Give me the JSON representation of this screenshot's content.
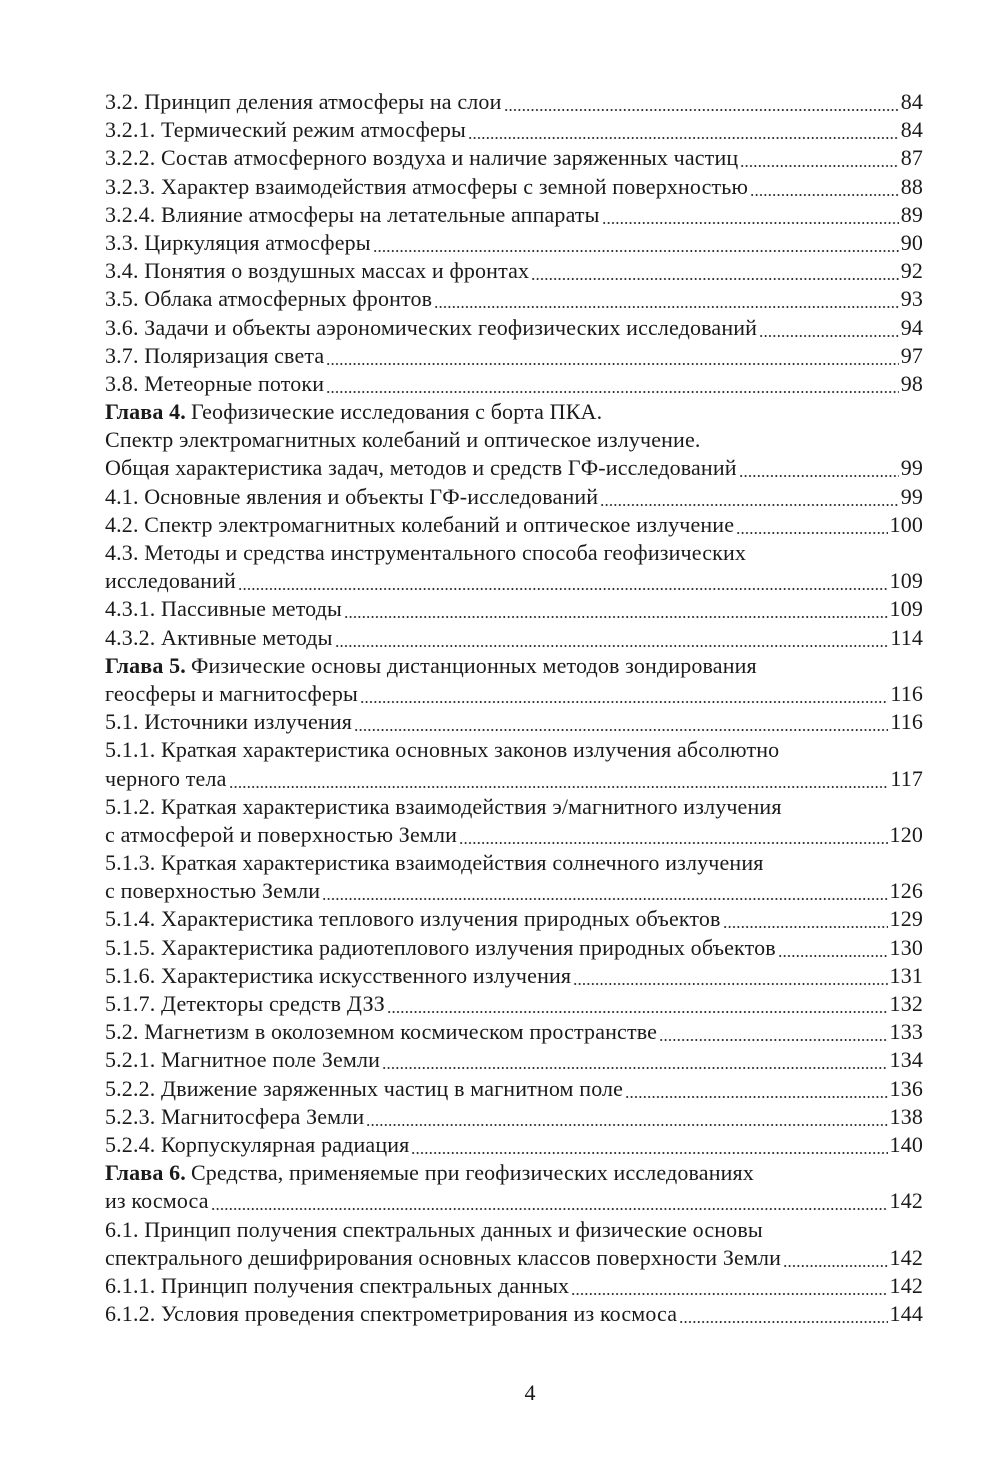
{
  "entries": [
    {
      "lines": [
        "3.2. Принцип деления атмосферы на слои"
      ],
      "page": "84"
    },
    {
      "lines": [
        "3.2.1. Термический режим атмосферы"
      ],
      "page": "84"
    },
    {
      "lines": [
        "3.2.2. Состав атмосферного воздуха и наличие заряженных частиц"
      ],
      "page": "87"
    },
    {
      "lines": [
        "3.2.3. Характер взаимодействия атмосферы с земной поверхностью"
      ],
      "page": "88"
    },
    {
      "lines": [
        "3.2.4. Влияние атмосферы на летательные аппараты"
      ],
      "page": "89"
    },
    {
      "lines": [
        "3.3. Циркуляция атмосферы"
      ],
      "page": "90"
    },
    {
      "lines": [
        "3.4. Понятия о воздушных массах и фронтах"
      ],
      "page": "92"
    },
    {
      "lines": [
        "3.5. Облака атмосферных фронтов"
      ],
      "page": "93"
    },
    {
      "lines": [
        "3.6. Задачи и объекты аэрономических геофизических исследований"
      ],
      "page": "94"
    },
    {
      "lines": [
        "3.7. Поляризация света"
      ],
      "page": "97"
    },
    {
      "lines": [
        "3.8. Метеорные потоки"
      ],
      "page": "98"
    },
    {
      "prefix": "Глава 4.",
      "lines": [
        "Геофизические исследования с борта ПКА.",
        "Спектр электромагнитных колебаний и оптическое излучение.",
        "Общая характеристика задач, методов и средств ГФ-исследований"
      ],
      "page": "99"
    },
    {
      "lines": [
        "4.1. Основные явления и объекты ГФ-исследований"
      ],
      "page": "99"
    },
    {
      "lines": [
        "4.2. Спектр электромагнитных колебаний и оптическое излучение"
      ],
      "page": "100"
    },
    {
      "lines": [
        "4.3. Методы и средства инструментального способа геофизических",
        "исследований"
      ],
      "page": "109"
    },
    {
      "lines": [
        "4.3.1. Пассивные методы"
      ],
      "page": "109"
    },
    {
      "lines": [
        "4.3.2. Активные методы"
      ],
      "page": "114"
    },
    {
      "prefix": "Глава 5.",
      "lines": [
        "Физические основы дистанционных методов зондирования",
        "геосферы и магнитосферы"
      ],
      "page": "116"
    },
    {
      "lines": [
        "5.1. Источники излучения"
      ],
      "page": "116"
    },
    {
      "lines": [
        "5.1.1. Краткая характеристика основных законов излучения абсолютно",
        "черного тела"
      ],
      "page": "117"
    },
    {
      "lines": [
        "5.1.2. Краткая характеристика взаимодействия э/магнитного излучения",
        "с атмосферой и поверхностью Земли"
      ],
      "page": "120"
    },
    {
      "lines": [
        "5.1.3. Краткая характеристика взаимодействия солнечного излучения",
        "с поверхностью Земли"
      ],
      "page": "126"
    },
    {
      "lines": [
        "5.1.4. Характеристика теплового излучения природных объектов"
      ],
      "page": "129"
    },
    {
      "lines": [
        "5.1.5. Характеристика радиотеплового излучения природных объектов"
      ],
      "page": "130"
    },
    {
      "lines": [
        "5.1.6. Характеристика искусственного излучения"
      ],
      "page": "131"
    },
    {
      "lines": [
        "5.1.7. Детекторы средств ДЗЗ"
      ],
      "page": "132"
    },
    {
      "lines": [
        "5.2. Магнетизм в околоземном космическом пространстве"
      ],
      "page": "133"
    },
    {
      "lines": [
        "5.2.1. Магнитное поле Земли"
      ],
      "page": "134"
    },
    {
      "lines": [
        "5.2.2. Движение заряженных частиц в магнитном поле"
      ],
      "page": "136"
    },
    {
      "lines": [
        "5.2.3. Магнитосфера Земли"
      ],
      "page": "138"
    },
    {
      "lines": [
        "5.2.4. Корпускулярная радиация"
      ],
      "page": "140"
    },
    {
      "prefix": "Глава 6.",
      "lines": [
        "Средства, применяемые при геофизических исследованиях",
        "из космоса"
      ],
      "page": "142"
    },
    {
      "lines": [
        "6.1. Принцип получения спектральных данных и физические основы",
        "спектрального дешифрирования основных классов поверхности Земли"
      ],
      "page": "142"
    },
    {
      "lines": [
        "6.1.1. Принцип получения спектральных данных"
      ],
      "page": "142"
    },
    {
      "lines": [
        "6.1.2. Условия проведения спектрометрирования из космоса"
      ],
      "page": "144"
    }
  ],
  "page_number": "4"
}
